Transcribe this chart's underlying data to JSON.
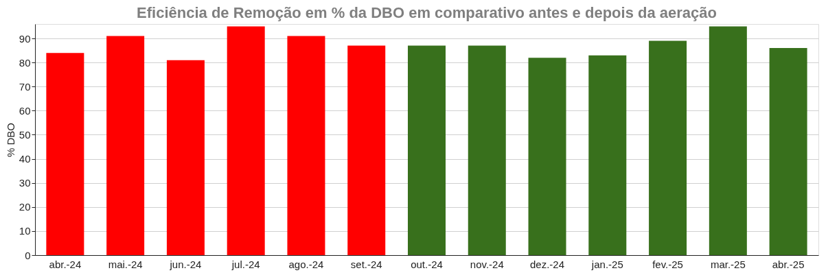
{
  "chart_data": {
    "type": "bar",
    "title": "Eficiência de Remoção em % da DBO em comparativo antes e depois da aeração",
    "ylabel": "% DBO",
    "categories": [
      "abr.-24",
      "mai.-24",
      "jun.-24",
      "jul.-24",
      "ago.-24",
      "set.-24",
      "out.-24",
      "nov.-24",
      "dez.-24",
      "jan.-25",
      "fev.-25",
      "mar.-25",
      "abr.-25"
    ],
    "values": [
      84,
      91,
      81,
      95,
      91,
      87,
      87,
      87,
      82,
      83,
      89,
      95,
      86
    ],
    "colors": [
      "#ff0000",
      "#ff0000",
      "#ff0000",
      "#ff0000",
      "#ff0000",
      "#ff0000",
      "#38701c",
      "#38701c",
      "#38701c",
      "#38701c",
      "#38701c",
      "#38701c",
      "#38701c"
    ],
    "ylim": [
      0,
      96
    ],
    "yticks": [
      0,
      10,
      20,
      30,
      40,
      50,
      60,
      70,
      80,
      90
    ],
    "grid": "y"
  }
}
